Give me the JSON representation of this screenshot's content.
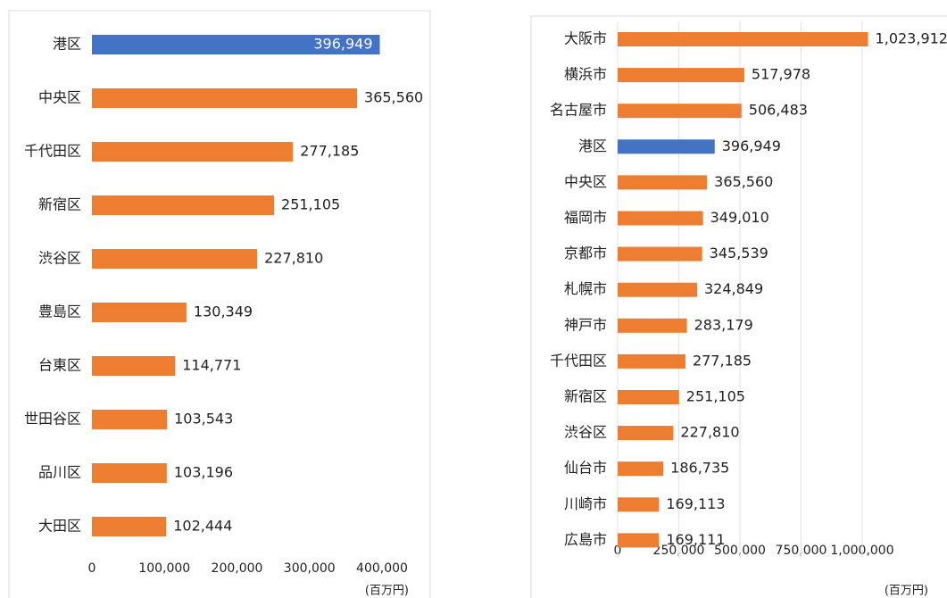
{
  "chart_data": [
    {
      "type": "barh",
      "categories": [
        "港区",
        "中央区",
        "千代田区",
        "新宿区",
        "渋谷区",
        "豊島区",
        "台東区",
        "世田谷区",
        "品川区",
        "大田区"
      ],
      "values": [
        396949,
        365560,
        277185,
        251105,
        227810,
        130349,
        114771,
        103543,
        103196,
        102444
      ],
      "value_labels": [
        "396,949",
        "365,560",
        "277,185",
        "251,105",
        "227,810",
        "130,349",
        "114,771",
        "103,543",
        "103,196",
        "102,444"
      ],
      "colors": [
        "#4472c4",
        "#ed7d31",
        "#ed7d31",
        "#ed7d31",
        "#ed7d31",
        "#ed7d31",
        "#ed7d31",
        "#ed7d31",
        "#ed7d31",
        "#ed7d31"
      ],
      "xlim": [
        0,
        400000
      ],
      "xticks": [
        0,
        {
          "value": 100000,
          "label": "100,000"
        },
        {
          "value": 200000,
          "label": "200,000"
        },
        {
          "value": 300000,
          "label": "300,000"
        },
        {
          "value": 400000,
          "label": "400,000"
        }
      ],
      "xlabel": "(百万円)",
      "grid": false
    },
    {
      "type": "barh",
      "categories": [
        "大阪市",
        "横浜市",
        "名古屋市",
        "港区",
        "中央区",
        "福岡市",
        "京都市",
        "札幌市",
        "神戸市",
        "千代田区",
        "新宿区",
        "渋谷区",
        "仙台市",
        "川崎市",
        "広島市"
      ],
      "values": [
        1023912,
        517978,
        506483,
        396949,
        365560,
        349010,
        345539,
        324849,
        283179,
        277185,
        251105,
        227810,
        186735,
        169113,
        169111
      ],
      "value_labels": [
        "1,023,912",
        "517,978",
        "506,483",
        "396,949",
        "365,560",
        "349,010",
        "345,539",
        "324,849",
        "283,179",
        "277,185",
        "251,105",
        "227,810",
        "186,735",
        "169,113",
        "169,111"
      ],
      "colors": [
        "#ed7d31",
        "#ed7d31",
        "#ed7d31",
        "#4472c4",
        "#ed7d31",
        "#ed7d31",
        "#ed7d31",
        "#ed7d31",
        "#ed7d31",
        "#ed7d31",
        "#ed7d31",
        "#ed7d31",
        "#ed7d31",
        "#ed7d31",
        "#ed7d31"
      ],
      "xlim": [
        0,
        1000000
      ],
      "xticks": [
        0,
        {
          "value": 250000,
          "label": "250,000"
        },
        {
          "value": 500000,
          "label": "500,000"
        },
        {
          "value": 750000,
          "label": "750,000"
        },
        {
          "value": 1000000,
          "label": "1,000,000"
        }
      ],
      "xlabel": "(百万円)",
      "grid": true
    }
  ]
}
